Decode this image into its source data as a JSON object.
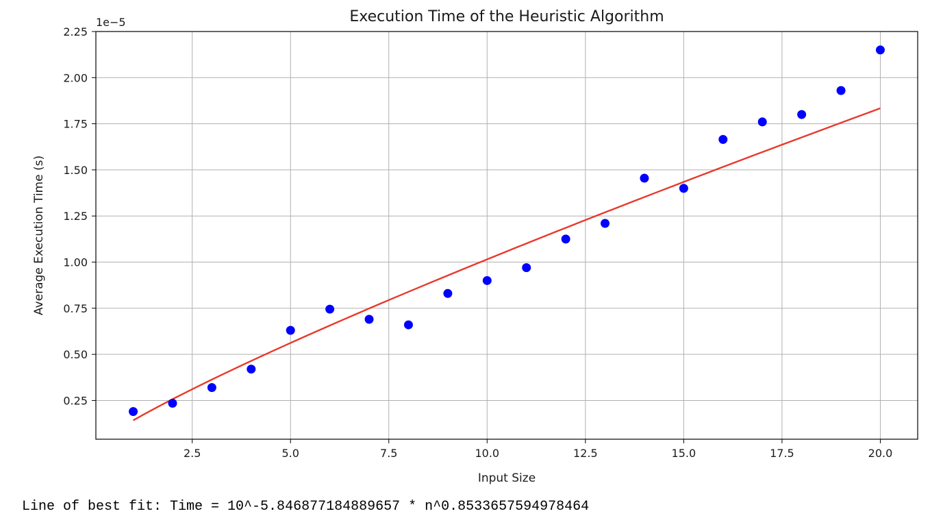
{
  "chart_data": {
    "type": "scatter",
    "title": "Execution Time of the Heuristic Algorithm",
    "xlabel": "Input Size",
    "ylabel": "Average Execution Time (s)",
    "y_offset_label": "1e−5",
    "xlim": [
      0.05,
      20.95
    ],
    "ylim": [
      0.04,
      2.25
    ],
    "x_ticks": [
      2.5,
      5.0,
      7.5,
      10.0,
      12.5,
      15.0,
      17.5,
      20.0
    ],
    "x_tick_labels": [
      "2.5",
      "5.0",
      "7.5",
      "10.0",
      "12.5",
      "15.0",
      "17.5",
      "20.0"
    ],
    "y_ticks": [
      0.25,
      0.5,
      0.75,
      1.0,
      1.25,
      1.5,
      1.75,
      2.0,
      2.25
    ],
    "y_tick_labels": [
      "0.25",
      "0.50",
      "0.75",
      "1.00",
      "1.25",
      "1.50",
      "1.75",
      "2.00",
      "2.25"
    ],
    "grid": true,
    "legend": "none",
    "x_scale": "linear",
    "y_scale": "linear",
    "series": [
      {
        "kind": "scatter",
        "color": "#0000ff",
        "x": [
          1,
          2,
          3,
          4,
          5,
          6,
          7,
          8,
          9,
          10,
          11,
          12,
          13,
          14,
          15,
          16,
          17,
          18,
          19,
          20
        ],
        "y": [
          0.19,
          0.235,
          0.32,
          0.42,
          0.63,
          0.745,
          0.69,
          0.66,
          0.83,
          0.9,
          0.97,
          1.125,
          1.21,
          1.455,
          1.4,
          1.665,
          1.76,
          1.8,
          1.93,
          2.15
        ]
      },
      {
        "kind": "fit-line",
        "color": "#e8392b",
        "x_range": [
          1,
          20
        ],
        "coefficient_exponent": -5.846877184889657,
        "power": 0.8533657594978464,
        "y_unit_scale": 100000
      }
    ]
  },
  "output": {
    "best_fit_text": "Line of best fit: Time = 10^-5.846877184889657 * n^0.8533657594978464"
  }
}
